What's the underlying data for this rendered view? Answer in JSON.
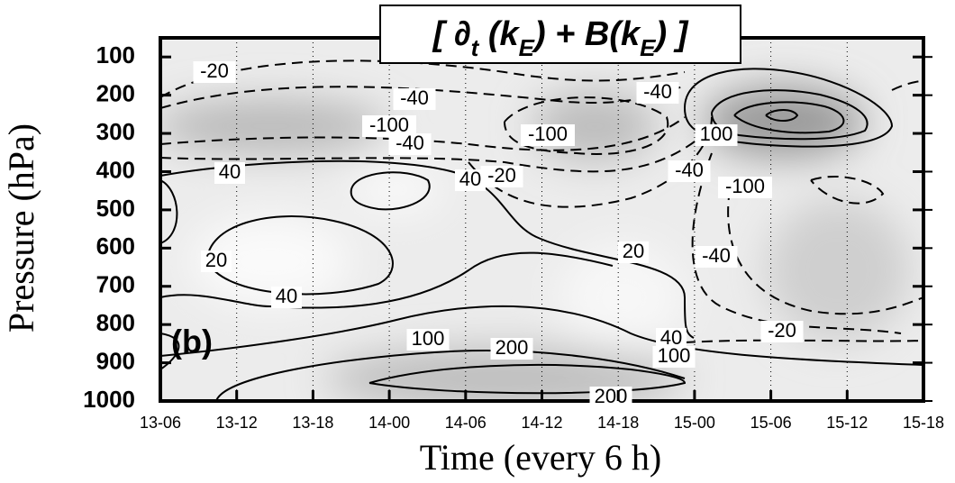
{
  "chart_data": {
    "type": "contour",
    "title_parts": [
      "[ ",
      "∂",
      "t",
      " (k",
      "E",
      ") + B(k",
      "E",
      ") ]"
    ],
    "panel_label": "(b)",
    "xlabel": "Time  (every 6 h)",
    "ylabel": "Pressure (hPa)",
    "categories": [
      "13-06",
      "13-12",
      "13-18",
      "14-00",
      "14-06",
      "14-12",
      "14-18",
      "15-00",
      "15-06",
      "15-12",
      "15-18"
    ],
    "ylim": [
      1000,
      50
    ],
    "yticks": [
      100,
      200,
      300,
      400,
      500,
      600,
      700,
      800,
      900,
      1000
    ],
    "grid": true,
    "contour_labels": [
      -20,
      -40,
      -100,
      -40,
      40,
      40,
      -20,
      -100,
      -40,
      100,
      -40,
      -100,
      -40,
      20,
      20,
      40,
      100,
      200,
      40,
      100,
      -20,
      200
    ]
  }
}
